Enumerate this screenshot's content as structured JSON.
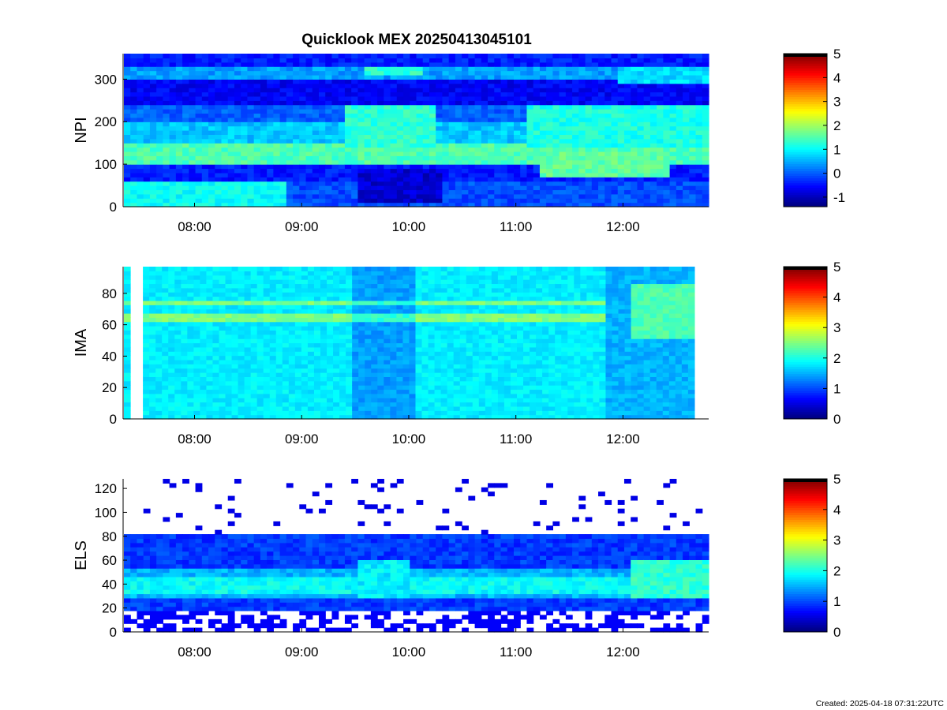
{
  "figure": {
    "title": "Quicklook MEX 20250413045101",
    "footer": "Created: 2025-04-18 07:31:22UTC"
  },
  "chart_data": [
    {
      "type": "heatmap",
      "ylabel": "NPI",
      "xlabel": "",
      "x_range": [
        "07:20",
        "12:48"
      ],
      "ylim": [
        0,
        360
      ],
      "yticks": [
        0,
        100,
        200,
        300
      ],
      "xticks": [
        "08:00",
        "09:00",
        "10:00",
        "11:00",
        "12:00"
      ],
      "colorbar": {
        "range": [
          -1.4,
          5
        ],
        "ticks": [
          -1,
          0,
          1,
          2,
          3,
          4,
          5
        ]
      },
      "grid": false
    },
    {
      "type": "heatmap",
      "ylabel": "IMA",
      "xlabel": "",
      "x_range": [
        "07:20",
        "12:40"
      ],
      "ylim": [
        0,
        97
      ],
      "yticks": [
        0,
        20,
        40,
        60,
        80
      ],
      "xticks": [
        "08:00",
        "09:00",
        "10:00",
        "11:00",
        "12:00"
      ],
      "colorbar": {
        "range": [
          0,
          5
        ],
        "ticks": [
          0,
          1,
          2,
          3,
          4,
          5
        ]
      },
      "grid": false
    },
    {
      "type": "heatmap",
      "ylabel": "ELS",
      "xlabel": "",
      "x_range": [
        "07:20",
        "12:48"
      ],
      "ylim": [
        0,
        128
      ],
      "yticks": [
        0,
        20,
        40,
        60,
        80,
        100,
        120
      ],
      "xticks": [
        "08:00",
        "09:00",
        "10:00",
        "11:00",
        "12:00"
      ],
      "colorbar": {
        "range": [
          0,
          5
        ],
        "ticks": [
          0,
          1,
          2,
          3,
          4,
          5
        ]
      },
      "grid": false
    }
  ]
}
